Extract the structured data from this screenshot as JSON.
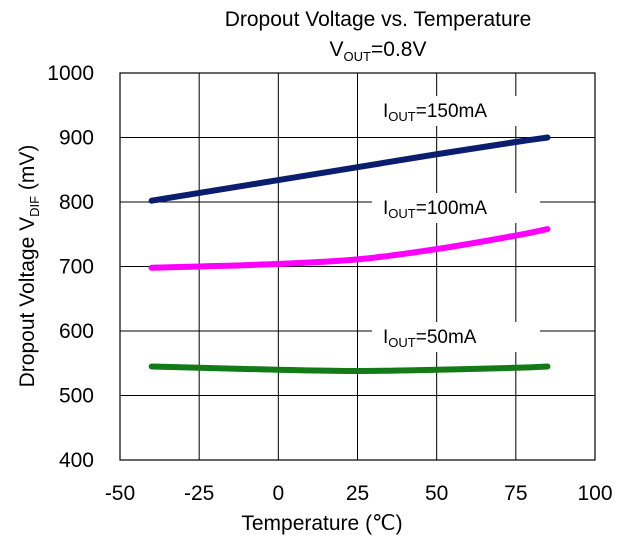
{
  "chart_data": {
    "type": "line",
    "title": {
      "line1": "Dropout Voltage vs. Temperature",
      "line2_main": "V",
      "line2_sub": "OUT",
      "line2_rest": "=0.8V"
    },
    "xlabel": "Temperature (℃)",
    "ylabel": {
      "main": "Dropout Voltage V",
      "sub": "DIF",
      "rest": " (mV)"
    },
    "xlim": [
      -50,
      100
    ],
    "ylim": [
      400,
      1000
    ],
    "xticks": [
      -50,
      -25,
      0,
      25,
      50,
      75,
      100
    ],
    "yticks": [
      400,
      500,
      600,
      700,
      800,
      900,
      1000
    ],
    "grid": true,
    "series": [
      {
        "name": "IOUT=150mA",
        "label_main": "I",
        "label_sub": "OUT",
        "label_rest": "=150mA",
        "color": "#0b1d6e",
        "x": [
          -40,
          -25,
          0,
          25,
          50,
          75,
          85
        ],
        "y": [
          802,
          814,
          834,
          854,
          874,
          893,
          900
        ]
      },
      {
        "name": "IOUT=100mA",
        "label_main": "I",
        "label_sub": "OUT",
        "label_rest": "=100mA",
        "color": "#ff00ff",
        "x": [
          -40,
          -25,
          0,
          25,
          50,
          75,
          85
        ],
        "y": [
          698,
          700,
          704,
          711,
          727,
          748,
          758
        ]
      },
      {
        "name": "IOUT=50mA",
        "label_main": "I",
        "label_sub": "OUT",
        "label_rest": "=50mA",
        "color": "#137a17",
        "x": [
          -40,
          -25,
          0,
          25,
          50,
          75,
          85
        ],
        "y": [
          545,
          543,
          540,
          538,
          540,
          543,
          545
        ]
      }
    ]
  }
}
